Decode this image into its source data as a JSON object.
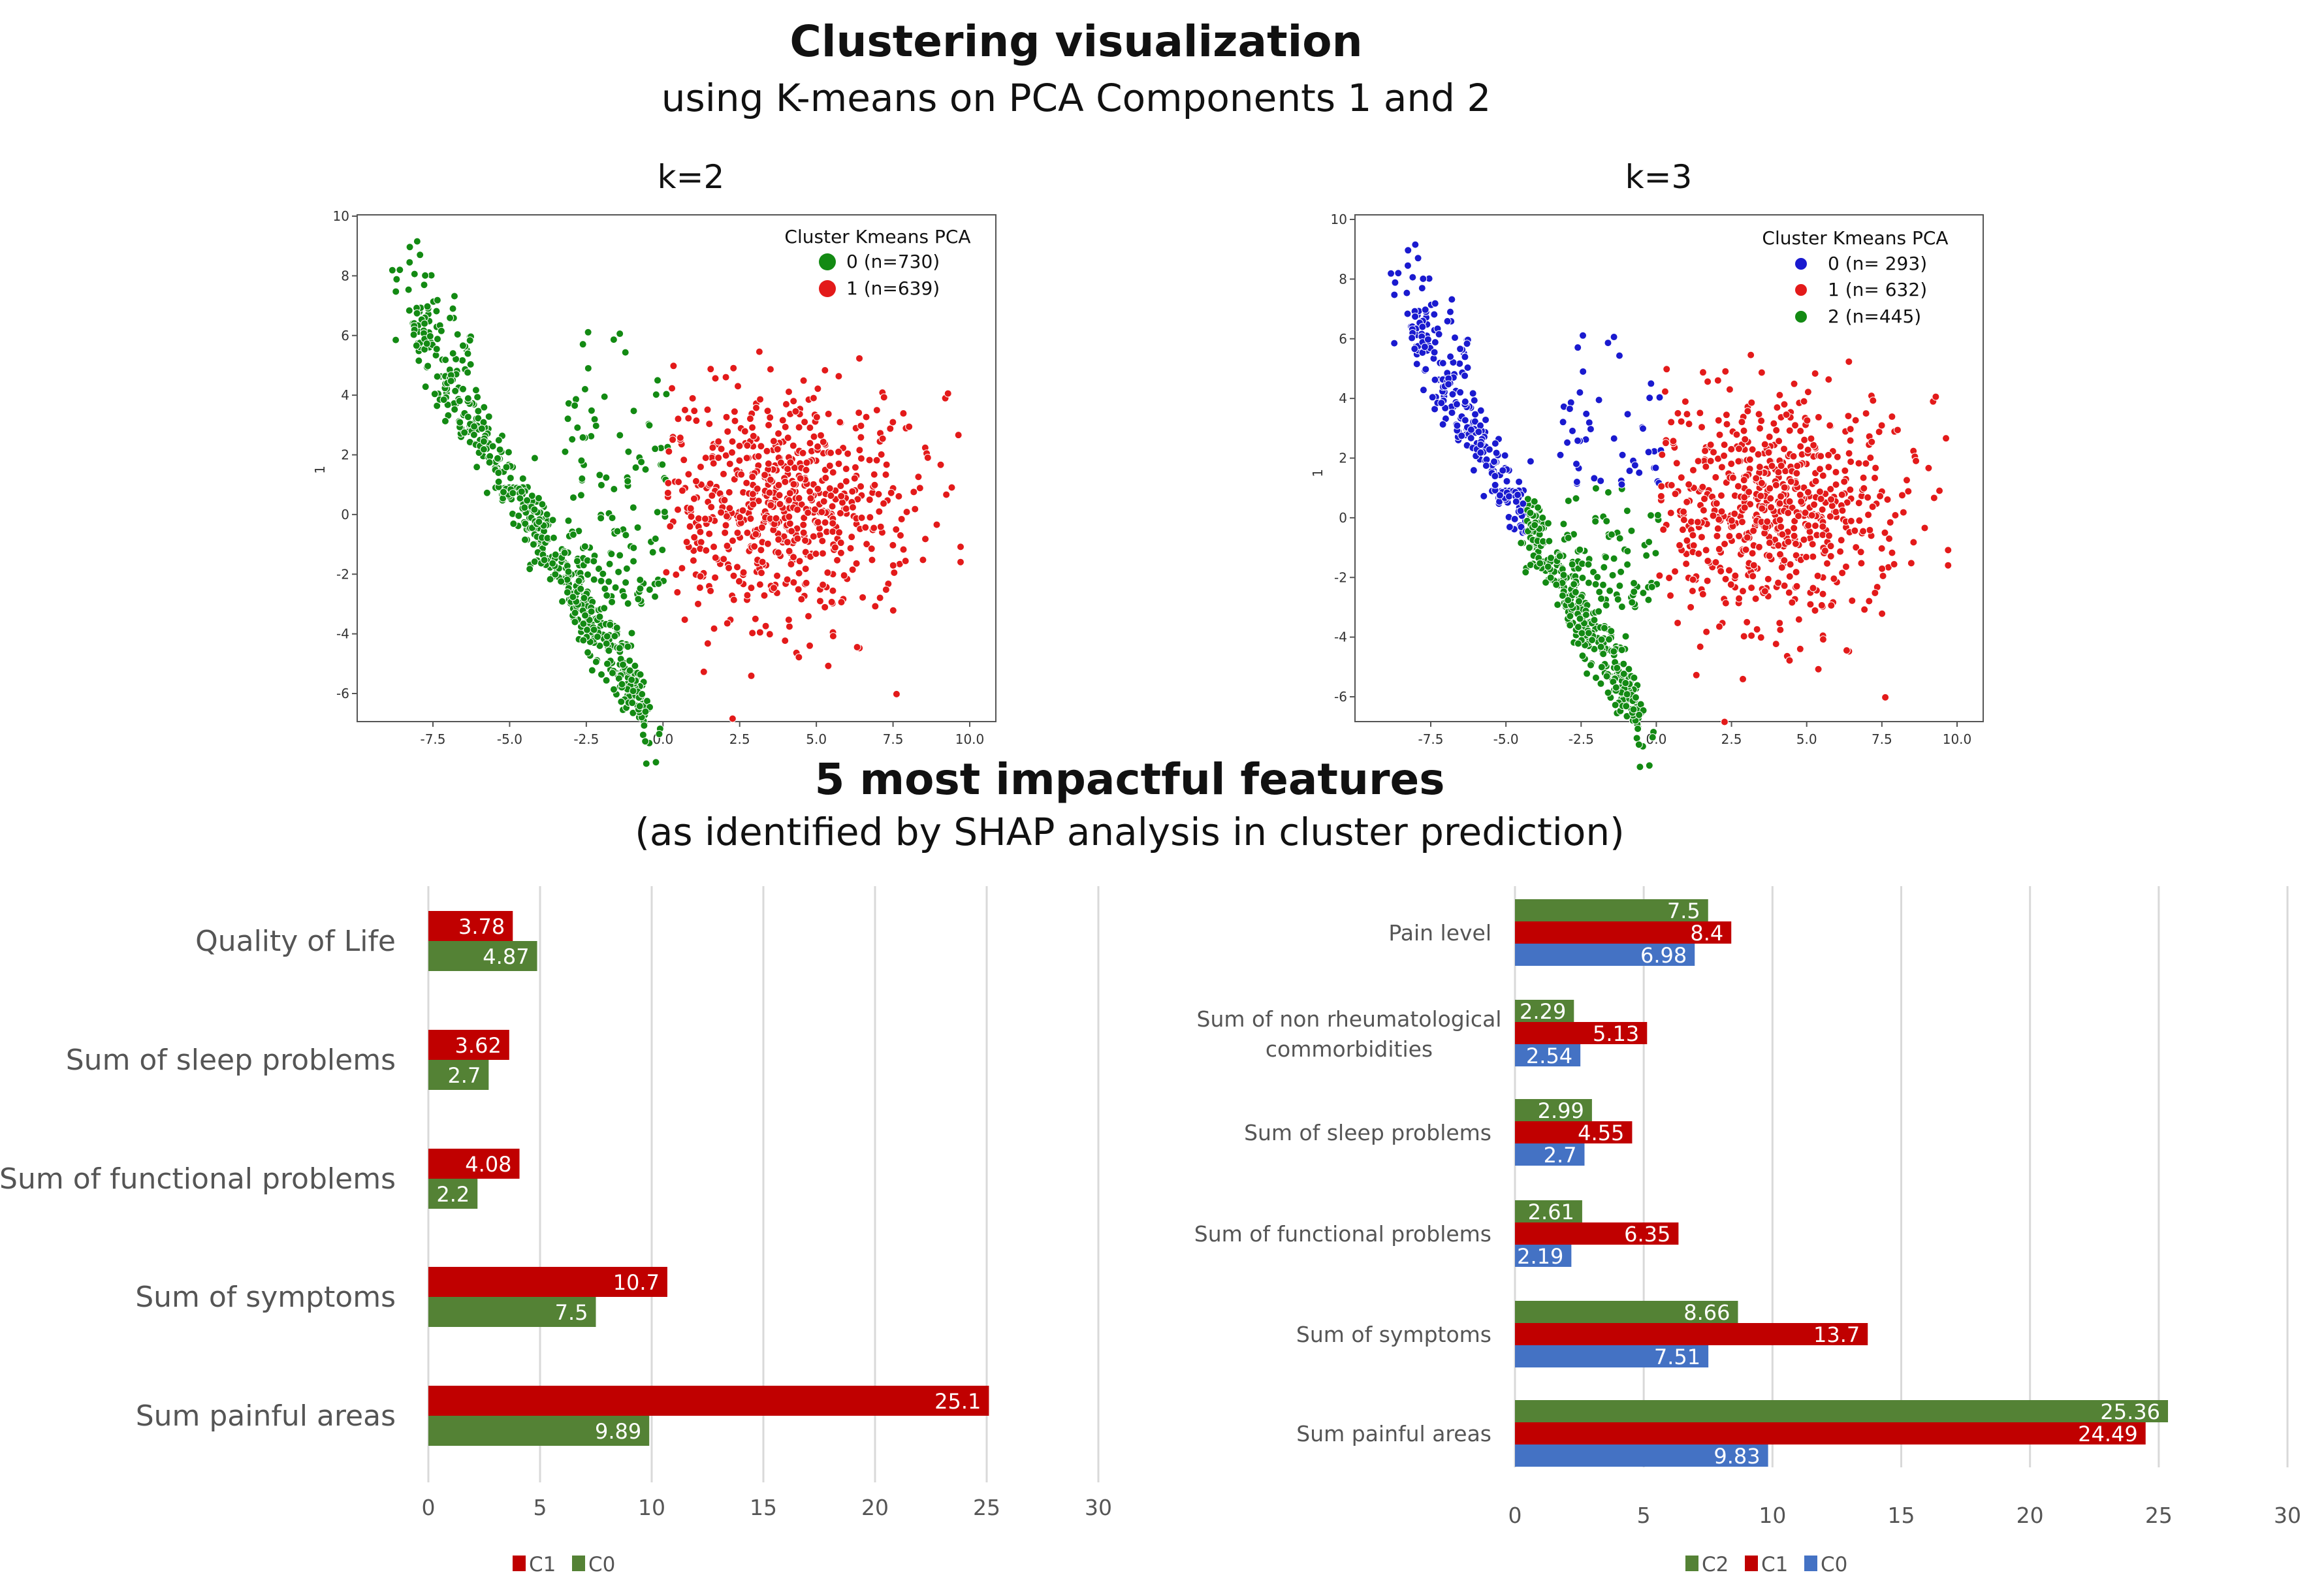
{
  "header": {
    "title": "Clustering visualization",
    "subtitle": "using K-means on PCA Components 1 and 2",
    "section2_title": "5 most impactful features",
    "section2_subtitle": "(as identified by SHAP analysis in cluster prediction)"
  },
  "colors": {
    "scatter_green": "#138a13",
    "scatter_red": "#e31a1a",
    "scatter_blue": "#1a1acf",
    "bar_green": "#548235",
    "bar_red": "#c00000",
    "bar_blue": "#4472c4"
  },
  "chart_data": [
    {
      "type": "scatter",
      "title": "k=2",
      "xlabel": "",
      "ylabel": "1",
      "xlim": [
        -9.5,
        10.5
      ],
      "ylim": [
        -7,
        10
      ],
      "xticks": [
        "-7.5",
        "-5.0",
        "-2.5",
        "0.0",
        "2.5",
        "5.0",
        "7.5",
        "10.0"
      ],
      "yticks": [
        "10",
        "8",
        "6",
        "4",
        "2",
        "0",
        "-2",
        "-4",
        "-6"
      ],
      "legend_title": "Cluster Kmeans PCA",
      "legend_position": "top-right",
      "series": [
        {
          "name": "0 (n=730)",
          "count": 730,
          "color": "#138a13"
        },
        {
          "name": "1 (n=639)",
          "count": 639,
          "color": "#e31a1a"
        }
      ]
    },
    {
      "type": "scatter",
      "title": "k=3",
      "xlabel": "",
      "ylabel": "1",
      "xlim": [
        -9.5,
        10.5
      ],
      "ylim": [
        -7,
        10
      ],
      "xticks": [
        "-7.5",
        "-5.0",
        "-2.5",
        "0.0",
        "2.5",
        "5.0",
        "7.5",
        "10.0"
      ],
      "yticks": [
        "10",
        "8",
        "6",
        "4",
        "2",
        "0",
        "-2",
        "-4",
        "-6"
      ],
      "legend_title": "Cluster Kmeans PCA",
      "legend_position": "top-right",
      "series": [
        {
          "name": "0 (n= 293)",
          "count": 293,
          "color": "#1a1acf"
        },
        {
          "name": "1 (n= 632)",
          "count": 632,
          "color": "#e31a1a"
        },
        {
          "name": "2 (n=445)",
          "count": 445,
          "color": "#138a13"
        }
      ]
    },
    {
      "type": "bar",
      "orientation": "horizontal",
      "categories": [
        "Quality of Life",
        "Sum of sleep problems",
        "Sum of functional problems",
        "Sum of symptoms",
        "Sum painful areas"
      ],
      "series": [
        {
          "name": "C1",
          "values": [
            3.78,
            3.62,
            4.08,
            10.7,
            25.1
          ],
          "labels": [
            "3.78",
            "3.62",
            "4.08",
            "10.7",
            "25.1"
          ],
          "color": "#c00000"
        },
        {
          "name": "C0",
          "values": [
            4.87,
            2.7,
            2.2,
            7.5,
            9.89
          ],
          "labels": [
            "4.87",
            "2.7",
            "2.2",
            "7.5",
            "9.89"
          ],
          "color": "#548235"
        }
      ],
      "xlim": [
        0,
        30
      ],
      "xticks": [
        "0",
        "5",
        "10",
        "15",
        "20",
        "25",
        "30"
      ],
      "legend": [
        "C1",
        "C0"
      ],
      "legend_position": "bottom",
      "grid": true
    },
    {
      "type": "bar",
      "orientation": "horizontal",
      "categories": [
        [
          "Pain level"
        ],
        [
          "Sum of non rheumatological",
          "commorbidities"
        ],
        [
          "Sum of sleep problems"
        ],
        [
          "Sum of functional problems"
        ],
        [
          "Sum of symptoms"
        ],
        [
          "Sum painful areas"
        ]
      ],
      "series": [
        {
          "name": "C2",
          "values": [
            7.5,
            2.29,
            2.99,
            2.61,
            8.66,
            25.36
          ],
          "labels": [
            "7.5",
            "2.29",
            "2.99",
            "2.61",
            "8.66",
            "25.36"
          ],
          "color": "#548235"
        },
        {
          "name": "C1",
          "values": [
            8.4,
            5.13,
            4.55,
            6.35,
            13.7,
            24.49
          ],
          "labels": [
            "8.4",
            "5.13",
            "4.55",
            "6.35",
            "13.7",
            "24.49"
          ],
          "color": "#c00000"
        },
        {
          "name": "C0",
          "values": [
            6.98,
            2.54,
            2.7,
            2.19,
            7.51,
            9.83
          ],
          "labels": [
            "6.98",
            "2.54",
            "2.7",
            "2.19",
            "7.51",
            "9.83"
          ],
          "color": "#4472c4"
        }
      ],
      "xlim": [
        0,
        30
      ],
      "xticks": [
        "0",
        "5",
        "10",
        "15",
        "20",
        "25",
        "30"
      ],
      "legend": [
        "C2",
        "C1",
        "C0"
      ],
      "legend_position": "bottom",
      "grid": true
    }
  ]
}
